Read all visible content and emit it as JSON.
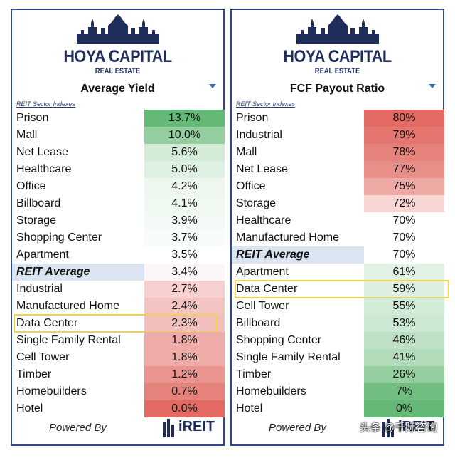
{
  "brand": {
    "name": "HOYA CAPITAL",
    "sub": "REAL ESTATE"
  },
  "footer": {
    "powered_by": "Powered By",
    "ireit": "iREIT"
  },
  "watermark": "头条 @千际咨询",
  "colors": {
    "green": "#5db56f",
    "white": "#ffffff",
    "red": "#e0625a",
    "avg_row": "#dbe5f1",
    "highlight": "#f1d34a",
    "border": "#2f4a8a"
  },
  "chart_data": [
    {
      "type": "table",
      "title": "Average Yield",
      "section_label": "REIT Sector Indexes",
      "scale": {
        "low_color": "red",
        "high_color": "green"
      },
      "highlighted_row": "Data Center",
      "rows": [
        {
          "label": "Prison",
          "value": 13.7,
          "display": "13.7%"
        },
        {
          "label": "Mall",
          "value": 10.0,
          "display": "10.0%"
        },
        {
          "label": "Net Lease",
          "value": 5.6,
          "display": "5.6%"
        },
        {
          "label": "Healthcare",
          "value": 5.0,
          "display": "5.0%"
        },
        {
          "label": "Office",
          "value": 4.2,
          "display": "4.2%"
        },
        {
          "label": "Billboard",
          "value": 4.1,
          "display": "4.1%"
        },
        {
          "label": "Storage",
          "value": 3.9,
          "display": "3.9%"
        },
        {
          "label": "Shopping Center",
          "value": 3.7,
          "display": "3.7%"
        },
        {
          "label": "Apartment",
          "value": 3.5,
          "display": "3.5%"
        },
        {
          "label": "REIT Average",
          "value": 3.4,
          "display": "3.4%",
          "average": true
        },
        {
          "label": "Industrial",
          "value": 2.7,
          "display": "2.7%"
        },
        {
          "label": "Manufactured Home",
          "value": 2.4,
          "display": "2.4%"
        },
        {
          "label": "Data Center",
          "value": 2.3,
          "display": "2.3%"
        },
        {
          "label": "Single Family Rental",
          "value": 1.8,
          "display": "1.8%"
        },
        {
          "label": "Cell Tower",
          "value": 1.8,
          "display": "1.8%"
        },
        {
          "label": "Timber",
          "value": 1.2,
          "display": "1.2%"
        },
        {
          "label": "Homebuilders",
          "value": 0.7,
          "display": "0.7%"
        },
        {
          "label": "Hotel",
          "value": 0.0,
          "display": "0.0%"
        }
      ]
    },
    {
      "type": "table",
      "title": "FCF Payout Ratio",
      "section_label": "REIT Sector Indexes",
      "scale": {
        "low_color": "green",
        "high_color": "red"
      },
      "highlighted_row": "Data Center",
      "rows": [
        {
          "label": "Prison",
          "value": 80,
          "display": "80%"
        },
        {
          "label": "Industrial",
          "value": 79,
          "display": "79%"
        },
        {
          "label": "Mall",
          "value": 78,
          "display": "78%"
        },
        {
          "label": "Net Lease",
          "value": 77,
          "display": "77%"
        },
        {
          "label": "Office",
          "value": 75,
          "display": "75%"
        },
        {
          "label": "Storage",
          "value": 72,
          "display": "72%"
        },
        {
          "label": "Healthcare",
          "value": 70,
          "display": "70%"
        },
        {
          "label": "Manufactured Home",
          "value": 70,
          "display": "70%"
        },
        {
          "label": "REIT Average",
          "value": 70,
          "display": "70%",
          "average": true
        },
        {
          "label": "Apartment",
          "value": 61,
          "display": "61%"
        },
        {
          "label": "Data Center",
          "value": 59,
          "display": "59%"
        },
        {
          "label": "Cell Tower",
          "value": 55,
          "display": "55%"
        },
        {
          "label": "Billboard",
          "value": 53,
          "display": "53%"
        },
        {
          "label": "Shopping Center",
          "value": 46,
          "display": "46%"
        },
        {
          "label": "Single Family Rental",
          "value": 41,
          "display": "41%"
        },
        {
          "label": "Timber",
          "value": 26,
          "display": "26%"
        },
        {
          "label": "Homebuilders",
          "value": 7,
          "display": "7%"
        },
        {
          "label": "Hotel",
          "value": 0,
          "display": "0%"
        }
      ]
    }
  ]
}
